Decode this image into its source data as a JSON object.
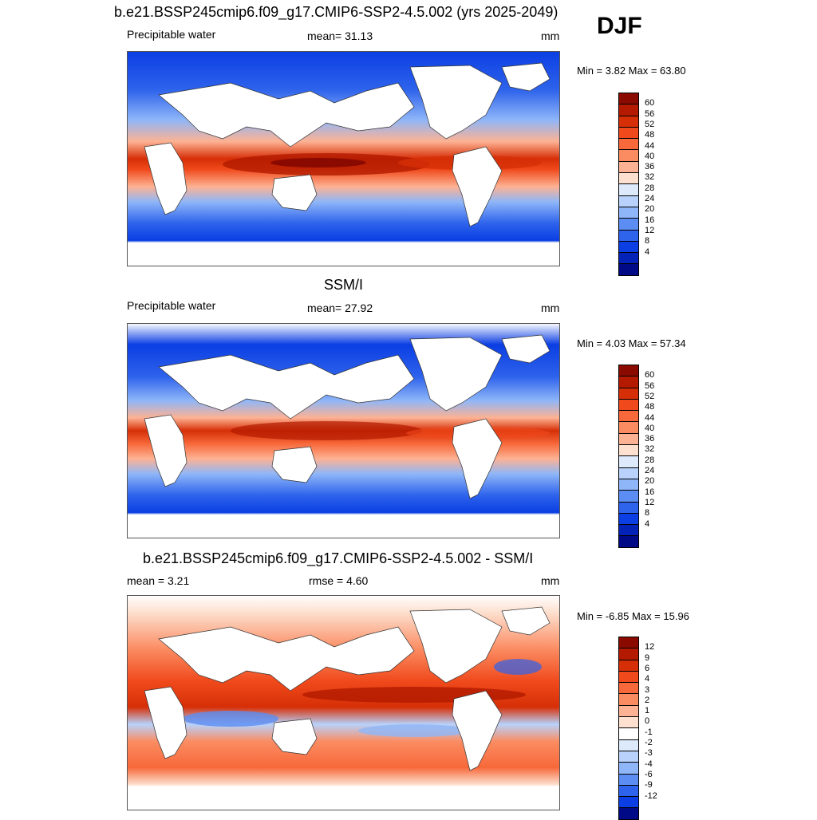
{
  "season": "DJF",
  "panels": [
    {
      "title": "b.e21.BSSP245cmip6.f09_g17.CMIP6-SSP2-4.5.002 (yrs 2025-2049)",
      "left_label": "Precipitable water",
      "center_label": "mean=  31.13",
      "units": "mm",
      "minmax": "Min =   3.82 Max =  63.80"
    },
    {
      "title": "SSM/I",
      "left_label": "Precipitable water",
      "center_label": "mean=  27.92",
      "units": "mm",
      "minmax": "Min =   4.03 Max =  57.34"
    },
    {
      "title": "b.e21.BSSP245cmip6.f09_g17.CMIP6-SSP2-4.5.002 - SSM/I",
      "left_label": "mean =   3.21",
      "center_label": "rmse =   4.60",
      "units": "mm",
      "minmax": "Min =  -6.85 Max =  15.96"
    }
  ],
  "colorbars": {
    "pw_levels": [
      "60",
      "56",
      "52",
      "48",
      "44",
      "40",
      "36",
      "32",
      "28",
      "24",
      "20",
      "16",
      "12",
      "8",
      "4"
    ],
    "pw_colors": [
      "#8b0a00",
      "#b31a00",
      "#d62f07",
      "#f04a1c",
      "#f7683a",
      "#fb8c62",
      "#fdb293",
      "#fde0cf",
      "#ddeafc",
      "#b8d2fb",
      "#8fb6f8",
      "#5b8df3",
      "#2e63ec",
      "#0b3ee3",
      "#0322b8",
      "#010a86"
    ],
    "diff_levels": [
      "12",
      "9",
      "6",
      "4",
      "3",
      "2",
      "1",
      "0",
      "-1",
      "-2",
      "-3",
      "-4",
      "-6",
      "-9",
      "-12"
    ],
    "diff_colors": [
      "#8b0a00",
      "#b31a00",
      "#d62f07",
      "#f04a1c",
      "#f7683a",
      "#fb8c62",
      "#fdb293",
      "#fde0cf",
      "#ffffff",
      "#ddeafc",
      "#b8d2fb",
      "#8fb6f8",
      "#5b8df3",
      "#2e63ec",
      "#0b3ee3",
      "#010a86"
    ]
  }
}
